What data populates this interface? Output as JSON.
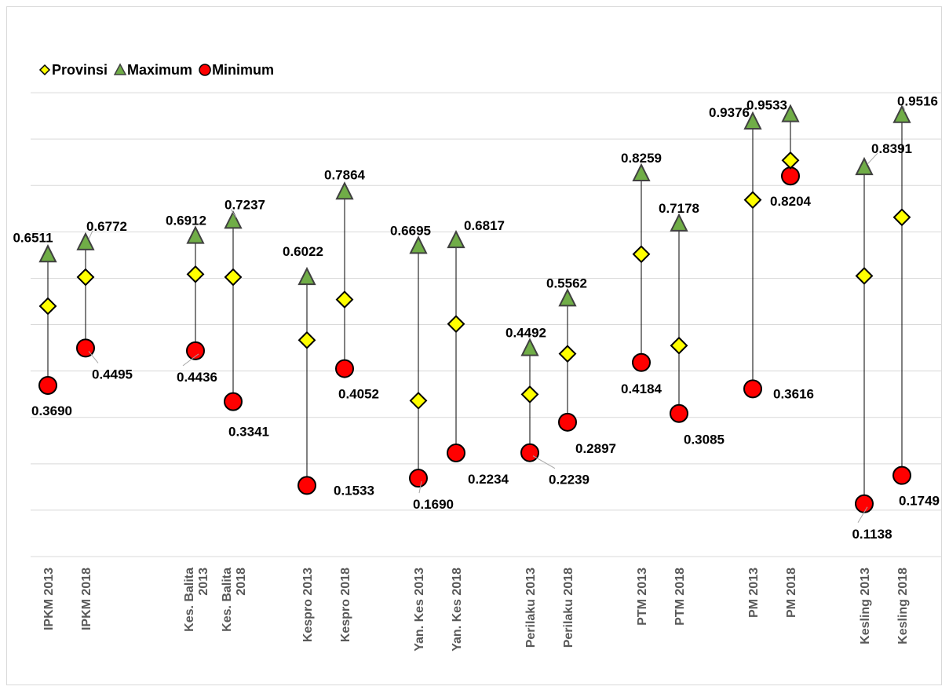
{
  "chart_data": {
    "type": "scatter",
    "title": "",
    "xlabel": "",
    "ylabel": "",
    "ylim": [
      0,
      1.1
    ],
    "grid": true,
    "legend": {
      "position": "top-left",
      "entries": [
        "Provinsi",
        "Maximum",
        "Minimum"
      ]
    },
    "categories": [
      "IPKM 2013",
      "IPKM 2018",
      "Kes. Balita 2013",
      "Kes. Balita 2018",
      "Kespro 2013",
      "Kespro 2018",
      "Yan. Kes 2013",
      "Yan. Kes 2018",
      "Perilaku 2013",
      "Perilaku 2018",
      "PTM 2013",
      "PTM 2018",
      "PM 2013",
      "PM 2018",
      "Kesling 2013",
      "Kesling 2018"
    ],
    "category_lines": [
      [
        "IPKM 2013"
      ],
      [
        "IPKM 2018"
      ],
      [
        "Kes. Balita",
        "2013"
      ],
      [
        "Kes. Balita",
        "2018"
      ],
      [
        "Kespro 2013"
      ],
      [
        "Kespro 2018"
      ],
      [
        "Yan. Kes 2013"
      ],
      [
        "Yan. Kes 2018"
      ],
      [
        "Perilaku 2013"
      ],
      [
        "Perilaku 2018"
      ],
      [
        "PTM 2013"
      ],
      [
        "PTM 2018"
      ],
      [
        "PM 2013"
      ],
      [
        "PM 2018"
      ],
      [
        "Kesling 2013"
      ],
      [
        "Kesling 2018"
      ]
    ],
    "series": [
      {
        "name": "Provinsi",
        "marker": "diamond",
        "color": "#FFFF00",
        "values": [
          0.5399,
          0.6024,
          0.6086,
          0.6024,
          0.4665,
          0.5541,
          0.3361,
          0.5015,
          0.3496,
          0.4372,
          0.6519,
          0.4548,
          0.7689,
          0.8541,
          0.605,
          0.7314
        ]
      },
      {
        "name": "Maximum",
        "marker": "triangle",
        "color": "#70AD47",
        "values": [
          0.6511,
          0.6772,
          0.6912,
          0.7237,
          0.6022,
          0.7864,
          0.6695,
          0.6817,
          0.4492,
          0.5562,
          0.8259,
          0.7178,
          0.9376,
          0.9533,
          0.8391,
          0.9516
        ],
        "labels": [
          "0.6511",
          "0.6772",
          "0.6912",
          "0.7237",
          "0.6022",
          "0.7864",
          "0.6695",
          "0.6817",
          "0.4492",
          "0.5562",
          "0.8259",
          "0.7178",
          "0.9376",
          "0.9533",
          "0.8391",
          "0.9516"
        ]
      },
      {
        "name": "Minimum",
        "marker": "circle",
        "color": "#FF0000",
        "values": [
          0.369,
          0.4495,
          0.4436,
          0.3341,
          0.1533,
          0.4052,
          0.169,
          0.2234,
          0.2239,
          0.2897,
          0.4184,
          0.3085,
          0.3616,
          0.8204,
          0.1138,
          0.1749
        ],
        "labels": [
          "0.3690",
          "0.4495",
          "0.4436",
          "0.3341",
          "0.1533",
          "0.4052",
          "0.1690",
          "0.2234",
          "0.2239",
          "0.2897",
          "0.4184",
          "0.3085",
          "0.3616",
          "0.8204",
          "0.1138",
          "0.1749"
        ]
      }
    ]
  }
}
